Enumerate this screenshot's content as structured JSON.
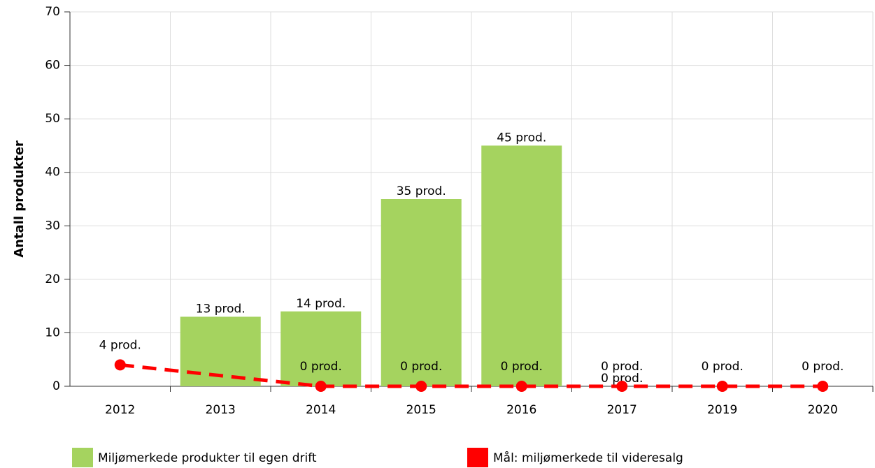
{
  "chart_data": {
    "type": "bar_line",
    "y_label": "Antall produkter",
    "categories": [
      "2012",
      "2013",
      "2014",
      "2015",
      "2016",
      "2017",
      "2019",
      "2020"
    ],
    "series": [
      {
        "name": "Miljømerkede produkter til egen drift",
        "type": "bar",
        "color": "#a5d35f",
        "values": [
          null,
          13,
          14,
          35,
          45,
          0,
          null,
          null
        ],
        "value_labels": [
          null,
          "13 prod.",
          "14 prod.",
          "35 prod.",
          "45 prod.",
          "0 prod.",
          null,
          null
        ]
      },
      {
        "name": "Mål: miljømerkede til videresalg",
        "type": "line",
        "color": "#ff0000",
        "dashed": true,
        "connect_nulls": true,
        "values": [
          4,
          null,
          0,
          0,
          0,
          0,
          0,
          0
        ],
        "value_labels": [
          "4 prod.",
          null,
          "0 prod.",
          "0 prod.",
          "0 prod.",
          "0 prod.",
          "0 prod.",
          "0 prod."
        ]
      }
    ],
    "ylim": [
      0,
      70
    ],
    "yticks": [
      0,
      10,
      20,
      30,
      40,
      50,
      60,
      70
    ],
    "grid": true
  }
}
